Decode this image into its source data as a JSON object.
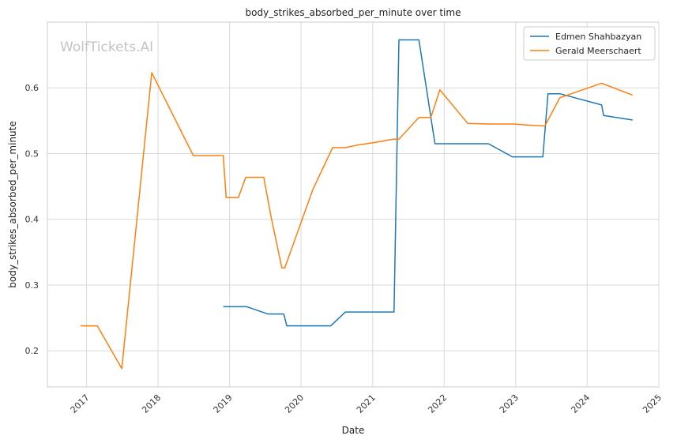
{
  "chart_data": {
    "type": "line",
    "title": "body_strikes_absorbed_per_minute over time",
    "xlabel": "Date",
    "ylabel": "body_strikes_absorbed_per_minute",
    "watermark": "WolfTickets.AI",
    "x_ticks": [
      "2017",
      "2018",
      "2019",
      "2020",
      "2021",
      "2022",
      "2023",
      "2024",
      "2025"
    ],
    "y_ticks": [
      "0.2",
      "0.3",
      "0.4",
      "0.5",
      "0.6"
    ],
    "xlim": [
      "2016-06-15",
      "2025-01-01"
    ],
    "ylim": [
      0.145,
      0.7
    ],
    "grid": true,
    "legend_position": "top-right",
    "series": [
      {
        "name": "Edmen Shahbazyan",
        "color": "#1f77b4",
        "points": [
          [
            "2018-11-30",
            0.267
          ],
          [
            "2019-03-30",
            0.267
          ],
          [
            "2019-07-15",
            0.256
          ],
          [
            "2019-10-05",
            0.256
          ],
          [
            "2019-10-20",
            0.238
          ],
          [
            "2020-06-01",
            0.238
          ],
          [
            "2020-08-15",
            0.259
          ],
          [
            "2021-04-20",
            0.259
          ],
          [
            "2021-05-15",
            0.673
          ],
          [
            "2021-08-25",
            0.673
          ],
          [
            "2021-11-15",
            0.515
          ],
          [
            "2022-08-15",
            0.515
          ],
          [
            "2022-12-15",
            0.495
          ],
          [
            "2023-05-20",
            0.495
          ],
          [
            "2023-06-15",
            0.591
          ],
          [
            "2023-08-15",
            0.591
          ],
          [
            "2024-03-15",
            0.574
          ],
          [
            "2024-03-25",
            0.558
          ],
          [
            "2024-08-20",
            0.551
          ]
        ]
      },
      {
        "name": "Gerald Meerschaert",
        "color": "#ff7f0e",
        "points": [
          [
            "2016-12-01",
            0.238
          ],
          [
            "2017-02-25",
            0.238
          ],
          [
            "2017-06-30",
            0.173
          ],
          [
            "2017-11-30",
            0.623
          ],
          [
            "2018-06-30",
            0.497
          ],
          [
            "2018-11-30",
            0.497
          ],
          [
            "2018-12-15",
            0.433
          ],
          [
            "2019-02-15",
            0.433
          ],
          [
            "2019-03-25",
            0.464
          ],
          [
            "2019-06-25",
            0.464
          ],
          [
            "2019-08-01",
            0.404
          ],
          [
            "2019-09-25",
            0.326
          ],
          [
            "2019-10-10",
            0.326
          ],
          [
            "2020-03-01",
            0.445
          ],
          [
            "2020-06-10",
            0.509
          ],
          [
            "2020-08-15",
            0.509
          ],
          [
            "2020-10-15",
            0.513
          ],
          [
            "2021-01-15",
            0.517
          ],
          [
            "2021-04-15",
            0.522
          ],
          [
            "2021-05-15",
            0.522
          ],
          [
            "2021-08-25",
            0.555
          ],
          [
            "2021-10-25",
            0.555
          ],
          [
            "2021-12-10",
            0.597
          ],
          [
            "2022-05-01",
            0.546
          ],
          [
            "2022-08-15",
            0.545
          ],
          [
            "2022-12-15",
            0.545
          ],
          [
            "2023-05-15",
            0.542
          ],
          [
            "2023-05-30",
            0.542
          ],
          [
            "2023-08-15",
            0.585
          ],
          [
            "2024-03-15",
            0.607
          ],
          [
            "2024-08-20",
            0.589
          ]
        ]
      }
    ]
  }
}
